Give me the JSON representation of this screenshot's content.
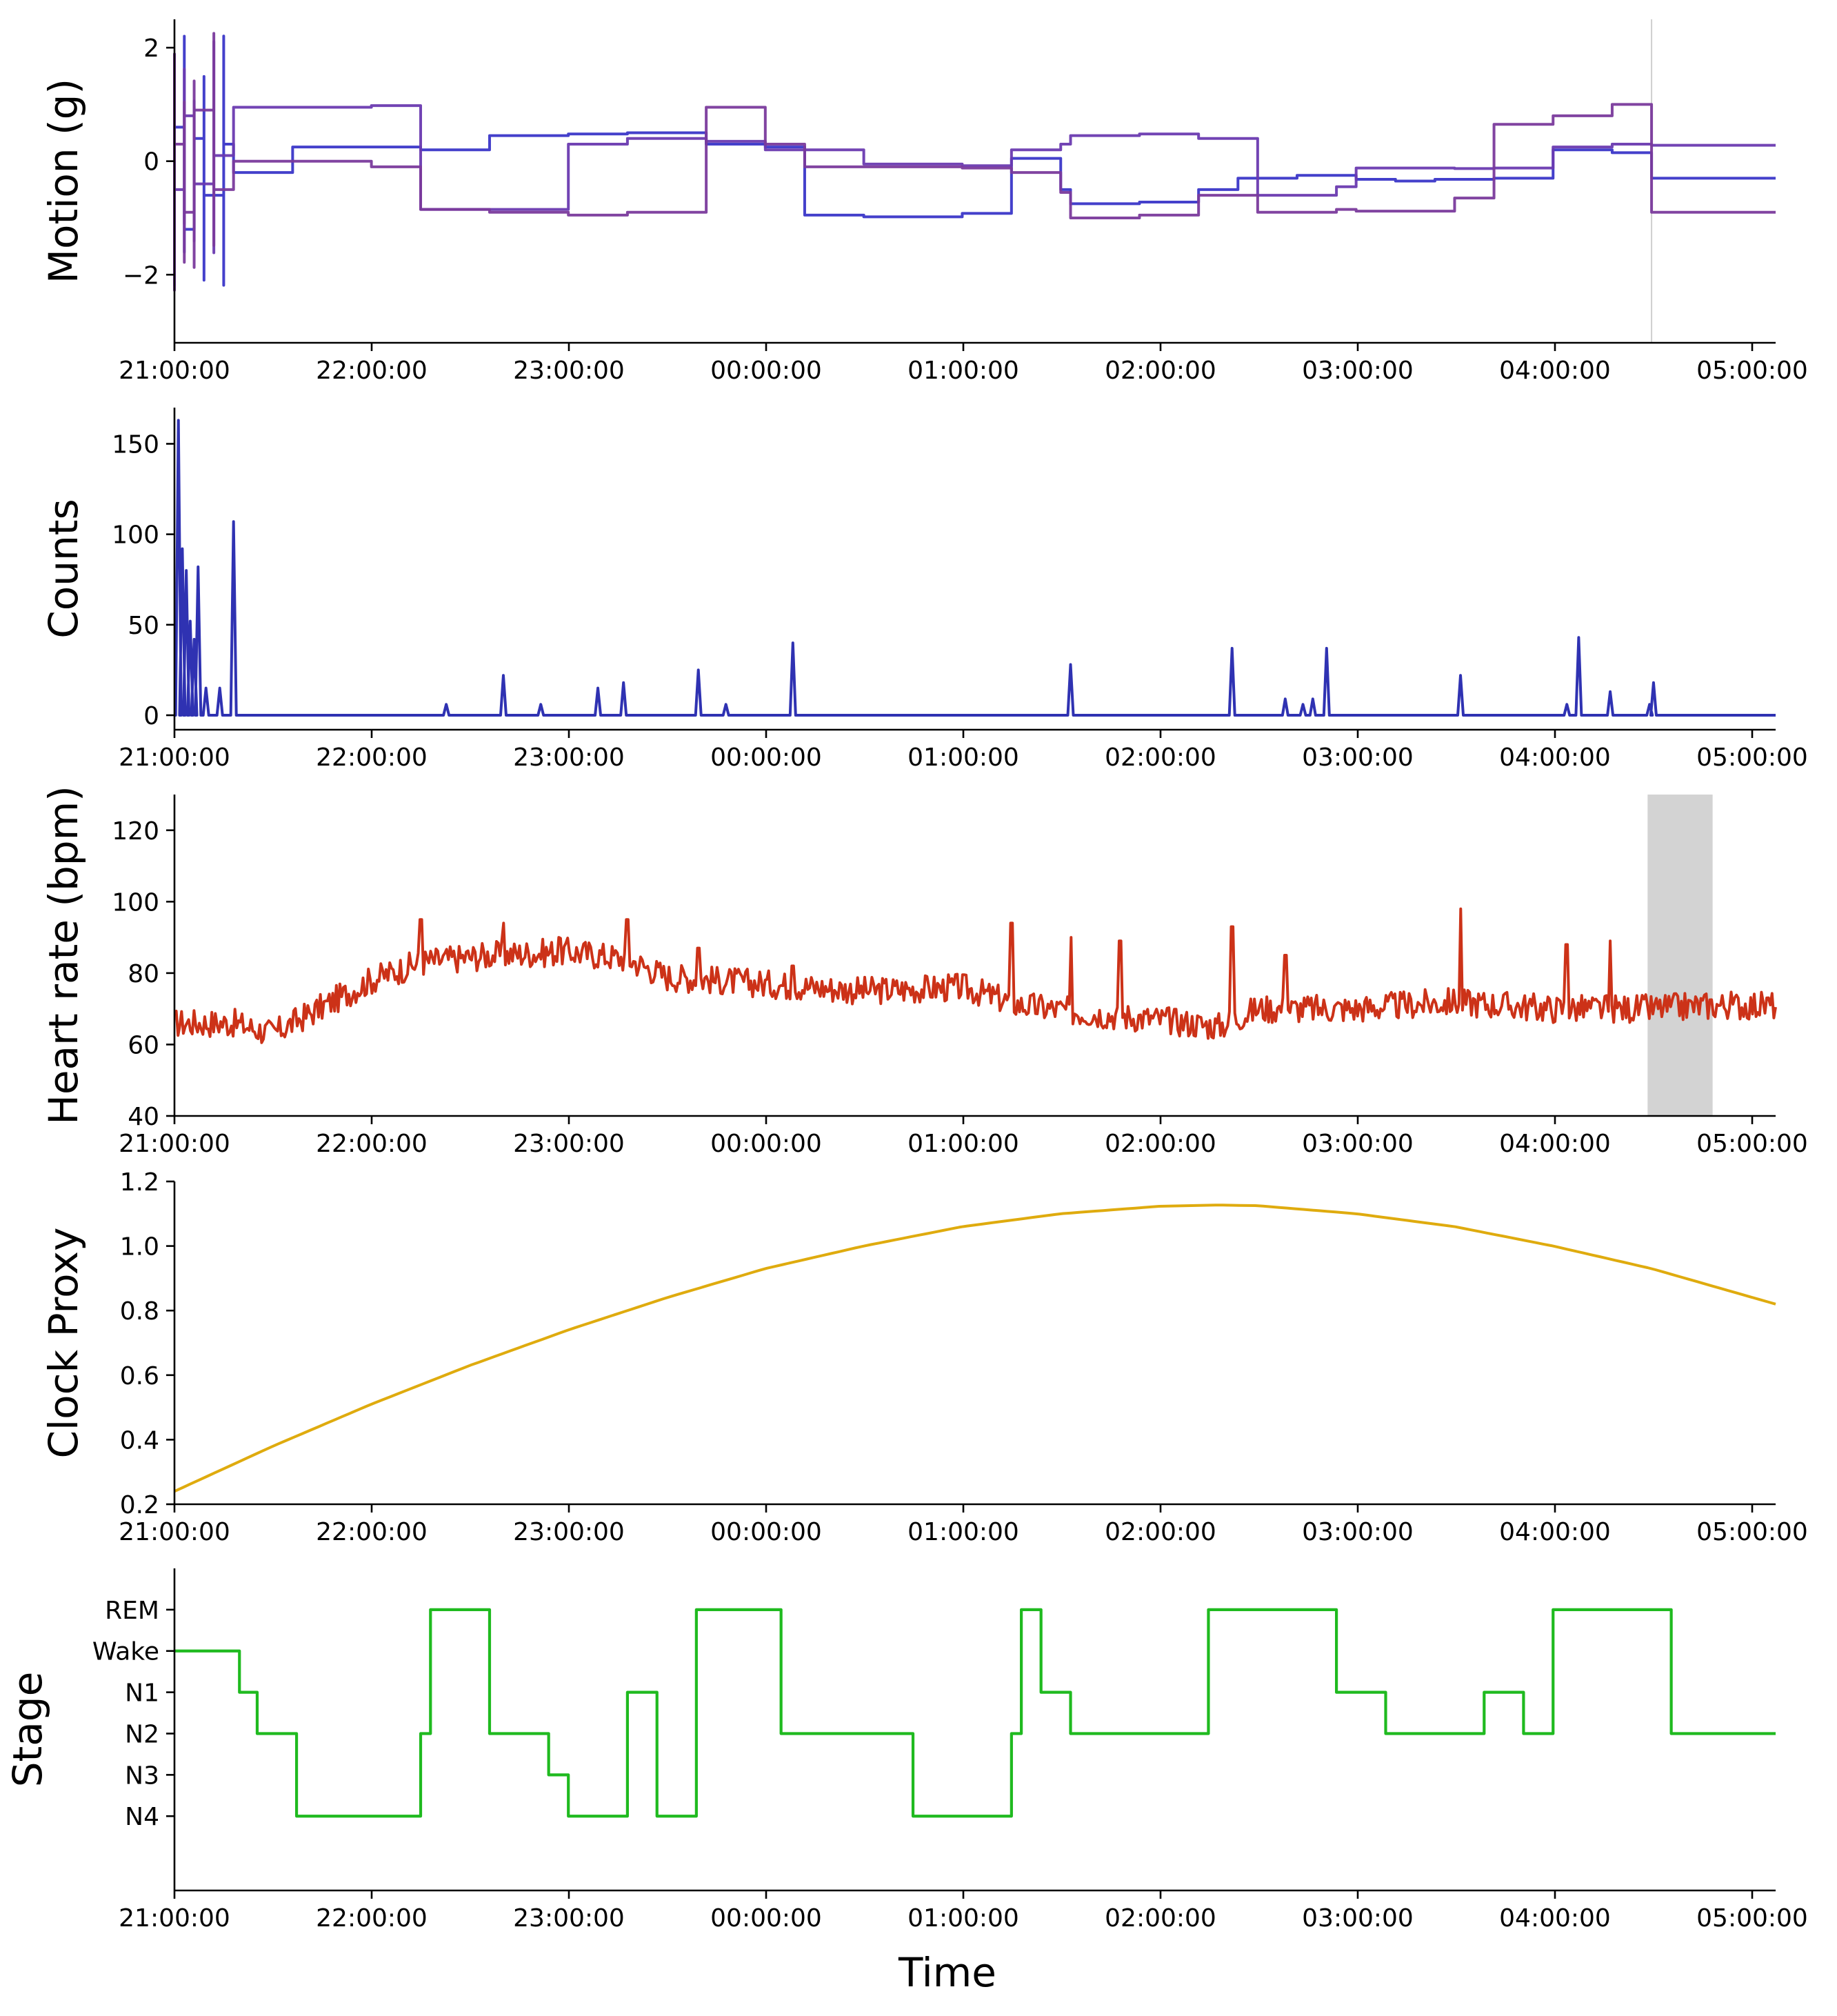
{
  "chart_data": [
    {
      "type": "line",
      "ylabel": "Motion (g)",
      "xlabel": "",
      "x_tick_labels": [
        "21:00:00",
        "22:00:00",
        "23:00:00",
        "00:00:00",
        "01:00:00",
        "02:00:00",
        "03:00:00",
        "04:00:00",
        "05:00:00"
      ],
      "x_range_hours": [
        21.0,
        29.13
      ],
      "y_ticks": [
        2,
        0,
        -2
      ],
      "y_tick_labels": [
        "2",
        "0",
        "−2"
      ],
      "ylim": [
        -3.2,
        2.5
      ],
      "vertical_marker_hours": 28.5,
      "series": [
        {
          "color": "#3a36c8",
          "x": [
            21.0,
            21.05,
            21.1,
            21.15,
            21.25,
            21.3,
            21.6,
            22.25,
            22.6,
            23.0,
            23.3,
            23.7,
            24.0,
            24.2,
            24.5,
            25.0,
            25.25,
            25.5,
            25.55,
            25.9,
            26.2,
            26.4,
            26.7,
            27.0,
            27.2,
            27.4,
            27.7,
            28.0,
            28.3,
            28.5,
            28.8,
            29.13
          ],
          "y": [
            0.6,
            -1.2,
            0.4,
            -0.6,
            0.3,
            -0.2,
            0.25,
            0.2,
            0.45,
            0.48,
            0.5,
            0.3,
            0.25,
            -0.95,
            -0.98,
            -0.92,
            0.05,
            -0.5,
            -0.75,
            -0.72,
            -0.5,
            -0.3,
            -0.25,
            -0.32,
            -0.35,
            -0.32,
            -0.3,
            0.2,
            0.15,
            -0.3,
            -0.3,
            -0.3
          ]
        },
        {
          "color": "#6a3ab0",
          "x": [
            21.0,
            21.05,
            21.1,
            21.2,
            21.3,
            22.0,
            22.25,
            22.6,
            23.0,
            23.3,
            23.7,
            24.0,
            24.2,
            24.5,
            25.0,
            25.25,
            25.5,
            25.55,
            25.9,
            26.2,
            26.5,
            26.9,
            27.0,
            27.5,
            27.7,
            28.0,
            28.3,
            28.5,
            28.8,
            29.13
          ],
          "y": [
            -0.5,
            0.8,
            -0.4,
            0.1,
            0.95,
            0.98,
            -0.85,
            -0.85,
            0.3,
            0.4,
            0.35,
            0.2,
            0.2,
            -0.05,
            -0.08,
            0.2,
            0.3,
            0.45,
            0.48,
            0.4,
            -0.6,
            -0.45,
            -0.12,
            -0.13,
            -0.12,
            0.25,
            0.3,
            0.28,
            0.28,
            0.28
          ]
        },
        {
          "color": "#7a3a9c",
          "x": [
            21.0,
            21.05,
            21.1,
            21.2,
            21.3,
            22.0,
            22.25,
            22.6,
            23.0,
            23.3,
            23.7,
            24.0,
            24.2,
            24.5,
            25.0,
            25.25,
            25.5,
            25.55,
            25.9,
            26.2,
            26.5,
            26.9,
            27.0,
            27.5,
            27.7,
            28.0,
            28.3,
            28.5,
            28.8,
            29.13
          ],
          "y": [
            0.3,
            -0.9,
            0.9,
            -0.5,
            0.0,
            -0.1,
            -0.85,
            -0.9,
            -0.95,
            -0.9,
            0.95,
            0.3,
            -0.1,
            -0.1,
            -0.12,
            -0.2,
            -0.55,
            -1.0,
            -0.95,
            -0.6,
            -0.9,
            -0.85,
            -0.88,
            -0.65,
            0.65,
            0.8,
            1.0,
            -0.9,
            -0.9,
            -0.9
          ]
        }
      ]
    },
    {
      "type": "line",
      "ylabel": "Counts",
      "xlabel": "",
      "x_tick_labels": [
        "21:00:00",
        "22:00:00",
        "23:00:00",
        "00:00:00",
        "01:00:00",
        "02:00:00",
        "03:00:00",
        "04:00:00",
        "05:00:00"
      ],
      "x_range_hours": [
        21.0,
        29.13
      ],
      "y_ticks": [
        150,
        100,
        50,
        0
      ],
      "y_tick_labels": [
        "150",
        "100",
        "50",
        "0"
      ],
      "ylim": [
        -8,
        170
      ],
      "series": [
        {
          "color": "#2f32b2",
          "spikes_x": [
            21.02,
            21.04,
            21.06,
            21.08,
            21.1,
            21.12,
            21.16,
            21.23,
            21.3,
            22.38,
            22.67,
            22.86,
            23.15,
            23.28,
            23.66,
            23.8,
            24.14,
            25.55,
            26.37,
            26.64,
            26.73,
            26.78,
            26.85,
            27.53,
            28.07,
            28.13,
            28.29,
            28.49,
            28.51
          ],
          "spikes_y": [
            163,
            92,
            80,
            52,
            42,
            82,
            15,
            15,
            107,
            6,
            22,
            6,
            15,
            18,
            25,
            6,
            40,
            28,
            37,
            9,
            6,
            9,
            37,
            22,
            6,
            43,
            13,
            6,
            18
          ]
        }
      ]
    },
    {
      "type": "line",
      "ylabel": "Heart rate (bpm)",
      "xlabel": "",
      "x_tick_labels": [
        "21:00:00",
        "22:00:00",
        "23:00:00",
        "00:00:00",
        "01:00:00",
        "02:00:00",
        "03:00:00",
        "04:00:00",
        "05:00:00"
      ],
      "x_range_hours": [
        21.0,
        29.13
      ],
      "y_ticks": [
        120,
        100,
        80,
        60,
        40
      ],
      "y_tick_labels": [
        "120",
        "100",
        "80",
        "60",
        "40"
      ],
      "ylim": [
        40,
        130
      ],
      "shaded_interval_hours": [
        28.48,
        28.81
      ],
      "series": [
        {
          "color": "#cc3218",
          "x": [
            21.0,
            21.3,
            21.5,
            22.0,
            22.25,
            22.6,
            23.0,
            23.3,
            23.5,
            24.0,
            24.5,
            25.0,
            25.3,
            25.6,
            26.0,
            26.3,
            26.5,
            27.0,
            27.5,
            28.0,
            28.5,
            28.8,
            29.13
          ],
          "y": [
            66,
            66,
            63,
            78,
            83,
            85,
            86,
            84,
            79,
            77,
            75,
            76,
            71,
            69,
            67,
            65,
            70,
            70,
            72,
            70,
            70,
            71,
            71
          ],
          "peaks_x": [
            22.25,
            22.67,
            22.95,
            23.3,
            23.66,
            24.14,
            25.25,
            25.55,
            25.8,
            26.37,
            26.64,
            27.53,
            28.07,
            28.29
          ],
          "peaks_y": [
            95,
            94,
            90,
            95,
            87,
            82,
            94,
            90,
            89,
            93,
            85,
            98,
            88,
            89
          ]
        }
      ]
    },
    {
      "type": "line",
      "ylabel": "Clock Proxy",
      "xlabel": "",
      "x_tick_labels": [
        "21:00:00",
        "22:00:00",
        "23:00:00",
        "00:00:00",
        "01:00:00",
        "02:00:00",
        "03:00:00",
        "04:00:00",
        "05:00:00"
      ],
      "x_range_hours": [
        21.0,
        29.13
      ],
      "y_ticks": [
        1.2,
        1.0,
        0.8,
        0.6,
        0.4,
        0.2
      ],
      "y_tick_labels": [
        "1.2",
        "1.0",
        "0.8",
        "0.6",
        "0.4",
        "0.2"
      ],
      "ylim": [
        0.2,
        1.2
      ],
      "series": [
        {
          "color": "#dfab0e",
          "x": [
            21.0,
            21.5,
            22.0,
            22.5,
            23.0,
            23.5,
            24.0,
            24.5,
            25.0,
            25.5,
            26.0,
            26.3,
            26.5,
            27.0,
            27.5,
            28.0,
            28.5,
            29.13
          ],
          "y": [
            0.24,
            0.38,
            0.51,
            0.63,
            0.74,
            0.84,
            0.93,
            1.0,
            1.06,
            1.1,
            1.123,
            1.127,
            1.125,
            1.1,
            1.06,
            1.0,
            0.93,
            0.82
          ]
        }
      ]
    },
    {
      "type": "line",
      "ylabel": "Stage",
      "xlabel": "Time",
      "x_tick_labels": [
        "21:00:00",
        "22:00:00",
        "23:00:00",
        "00:00:00",
        "01:00:00",
        "02:00:00",
        "03:00:00",
        "04:00:00",
        "05:00:00"
      ],
      "x_range_hours": [
        21.0,
        29.13
      ],
      "y_categories": [
        "REM",
        "Wake",
        "N1",
        "N2",
        "N3",
        "N4"
      ],
      "series": [
        {
          "color": "#1fba1f",
          "x": [
            21.0,
            21.15,
            21.33,
            21.42,
            21.62,
            21.95,
            22.25,
            22.3,
            22.6,
            22.9,
            23.0,
            23.3,
            23.45,
            23.65,
            24.08,
            24.18,
            24.3,
            24.75,
            25.25,
            25.3,
            25.4,
            25.55,
            26.25,
            26.5,
            26.9,
            27.15,
            27.5,
            27.65,
            27.85,
            28.0,
            28.35,
            28.6,
            29.13
          ],
          "y": [
            "Wake",
            "Wake",
            "N1",
            "N2",
            "N4",
            "N4",
            "N2",
            "REM",
            "N2",
            "N3",
            "N4",
            "N1",
            "N4",
            "REM",
            "N2",
            "N2",
            "N2",
            "N4",
            "N2",
            "REM",
            "N1",
            "N2",
            "REM",
            "REM",
            "N1",
            "N2",
            "N2",
            "N1",
            "N2",
            "REM",
            "REM",
            "N2",
            "N2"
          ]
        }
      ]
    }
  ]
}
